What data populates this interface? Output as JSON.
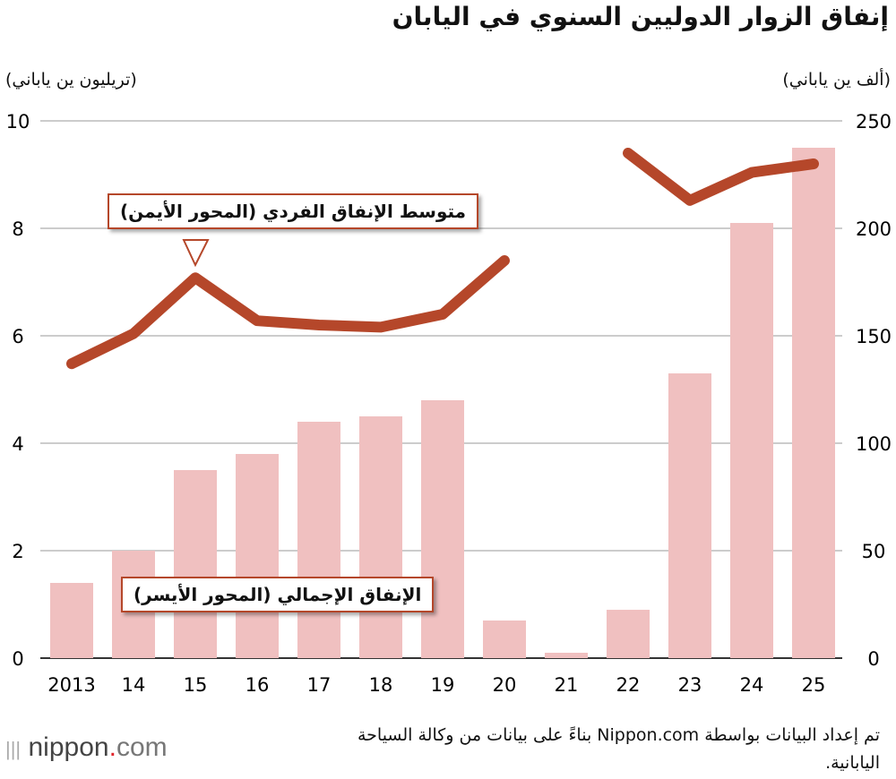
{
  "title": "إنفاق الزوار الدوليين السنوي في اليابان",
  "source": "تم إعداد البيانات بواسطة Nippon.com بناءً على بيانات من وكالة السياحة اليابانية.",
  "logo": {
    "main": "nippon",
    "dot": ".",
    "com": "com"
  },
  "chart_data": {
    "type": "bar+line",
    "categories": [
      "2013",
      "14",
      "15",
      "16",
      "17",
      "18",
      "19",
      "20",
      "21",
      "22",
      "23",
      "24",
      "25"
    ],
    "left_axis": {
      "label": "(تريليون ين ياباني)",
      "range": [
        0,
        10
      ],
      "ticks": [
        "0",
        "2",
        "4",
        "6",
        "8",
        "10"
      ]
    },
    "right_axis": {
      "label": "(ألف ين ياباني)",
      "range": [
        0,
        250
      ],
      "ticks": [
        "0",
        "50",
        "100",
        "150",
        "200",
        "250"
      ]
    },
    "grid": true,
    "series": [
      {
        "name": "الإنفاق الإجمالي (المحور الأيسر)",
        "type": "bar",
        "axis": "left",
        "color": "#f0c0c0",
        "values": [
          1.4,
          2.0,
          3.5,
          3.8,
          4.4,
          4.5,
          4.8,
          0.7,
          0.1,
          0.9,
          5.3,
          8.1,
          9.5
        ]
      },
      {
        "name": "متوسط الإنفاق الفردي (المحور الأيمن)",
        "type": "line",
        "axis": "right",
        "color": "#b5472a",
        "values": [
          137,
          151,
          177,
          157,
          155,
          154,
          160,
          185,
          null,
          235,
          213,
          226,
          230
        ]
      }
    ]
  }
}
